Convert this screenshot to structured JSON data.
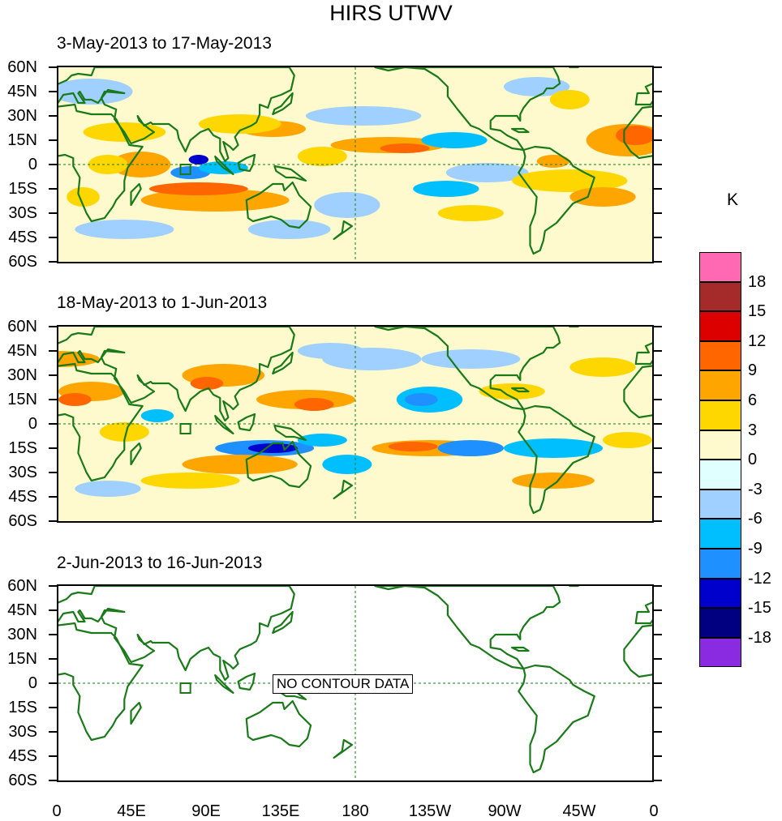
{
  "title": "HIRS UTWV",
  "panels": [
    {
      "label": "3-May-2013 to 17-May-2013",
      "has_data": true
    },
    {
      "label": "18-May-2013 to 1-Jun-2013",
      "has_data": true
    },
    {
      "label": "2-Jun-2013 to 16-Jun-2013",
      "has_data": false
    }
  ],
  "no_data_text": "NO CONTOUR DATA",
  "y_ticks": [
    "60N",
    "45N",
    "30N",
    "15N",
    "0",
    "15S",
    "30S",
    "45S",
    "60S"
  ],
  "x_ticks": [
    "0",
    "45E",
    "90E",
    "135E",
    "180",
    "135W",
    "90W",
    "45W",
    "0"
  ],
  "colorbar": {
    "unit": "K",
    "labels": [
      "18",
      "15",
      "12",
      "9",
      "6",
      "3",
      "0",
      "-3",
      "-6",
      "-9",
      "-12",
      "-15",
      "-18"
    ],
    "colors": [
      "#ff69b4",
      "#a52a2a",
      "#dd0000",
      "#ff6600",
      "#ffa500",
      "#ffd700",
      "#fffacd",
      "#e0ffff",
      "#a0d0ff",
      "#00bfff",
      "#1e90ff",
      "#0000cd",
      "#000080",
      "#8a2be2"
    ]
  },
  "colors": {
    "coast": "#1a7a1a",
    "grid": "#1a7a1a",
    "frame": "#000000"
  }
}
